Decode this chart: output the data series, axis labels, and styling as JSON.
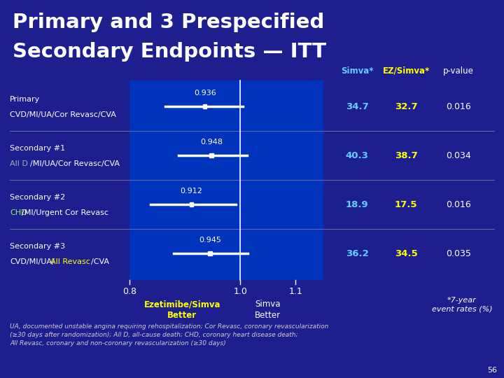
{
  "title_line1": "Primary and 3 Prespecified",
  "title_line2": "Secondary Endpoints — ITT",
  "bg_color": "#1e1f8e",
  "plot_bg_blue": "#0033bb",
  "rows": [
    {
      "label_line1": "Primary",
      "label_line2_parts": [
        {
          "text": "CVD/MI/UA/Cor Revasc/CVA",
          "color": "#ffffff"
        }
      ],
      "hr": 0.936,
      "ci_low": 0.865,
      "ci_high": 1.005,
      "simva": "34.7",
      "ez_simva": "32.7",
      "pvalue": "0.016"
    },
    {
      "label_line1": "Secondary #1",
      "label_line2_parts": [
        {
          "text": "All D",
          "color": "#aaaaaa"
        },
        {
          "text": "/MI/UA/Cor Revasc/CVA",
          "color": "#ffffff"
        }
      ],
      "hr": 0.948,
      "ci_low": 0.888,
      "ci_high": 1.012,
      "simva": "40.3",
      "ez_simva": "38.7",
      "pvalue": "0.034"
    },
    {
      "label_line1": "Secondary #2",
      "label_line2_parts": [
        {
          "text": "CHD",
          "color": "#99ee55"
        },
        {
          "text": "/MI/Urgent Cor Revasc",
          "color": "#ffffff"
        }
      ],
      "hr": 0.912,
      "ci_low": 0.838,
      "ci_high": 0.992,
      "simva": "18.9",
      "ez_simva": "17.5",
      "pvalue": "0.016"
    },
    {
      "label_line1": "Secondary #3",
      "label_line2_parts": [
        {
          "text": "CVD/MI/UA/",
          "color": "#ffffff"
        },
        {
          "text": "All Revasc",
          "color": "#ffff00"
        },
        {
          "text": "/CVA",
          "color": "#ffffff"
        }
      ],
      "hr": 0.945,
      "ci_low": 0.88,
      "ci_high": 1.013,
      "simva": "36.2",
      "ez_simva": "34.5",
      "pvalue": "0.035"
    }
  ],
  "xmin": 0.8,
  "xmax": 1.15,
  "xticks": [
    0.8,
    1.0,
    1.1
  ],
  "xticklabels": [
    "0.8",
    "1.0",
    "1.1"
  ],
  "footnote": "UA, documented unstable angina requiring rehospitalization; Cor Revasc, coronary revascularization\n(≥30 days after randomization); All D, all-cause death; CHD, coronary heart disease death;\nAll Revasc, coronary and non-coronary revascularization (≥30 days)",
  "slide_number": "56",
  "header_simva": "Simva*",
  "header_simva_color": "#66ccff",
  "header_ezSimva": "EZ/Simva*",
  "header_ezSimva_color": "#ffff00",
  "header_pvalue": "p-value",
  "xlabel_left": "Ezetimibe/Simva\nBetter",
  "xlabel_right": "Simva\nBetter",
  "note_7yr": "*7-year\nevent rates (%)",
  "simva_color": "#66ccff",
  "ez_simva_color": "#ffff00"
}
